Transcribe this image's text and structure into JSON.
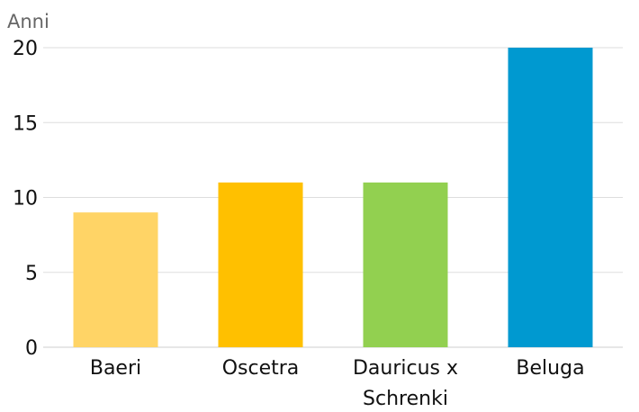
{
  "chart_data": {
    "type": "bar",
    "ylabel": "Anni",
    "categories": [
      "Baeri",
      "Oscetra",
      "Dauricus x Schrenki",
      "Beluga"
    ],
    "category_lines": [
      [
        "Baeri"
      ],
      [
        "Oscetra"
      ],
      [
        "Dauricus x",
        "Schrenki"
      ],
      [
        "Beluga"
      ]
    ],
    "values": [
      9,
      11,
      11,
      20
    ],
    "colors": [
      "#ffd466",
      "#ffc000",
      "#92d050",
      "#0099d0"
    ],
    "ylim": [
      0,
      20
    ],
    "yticks": [
      0,
      5,
      10,
      15,
      20
    ],
    "grid": true,
    "legend": "none"
  }
}
